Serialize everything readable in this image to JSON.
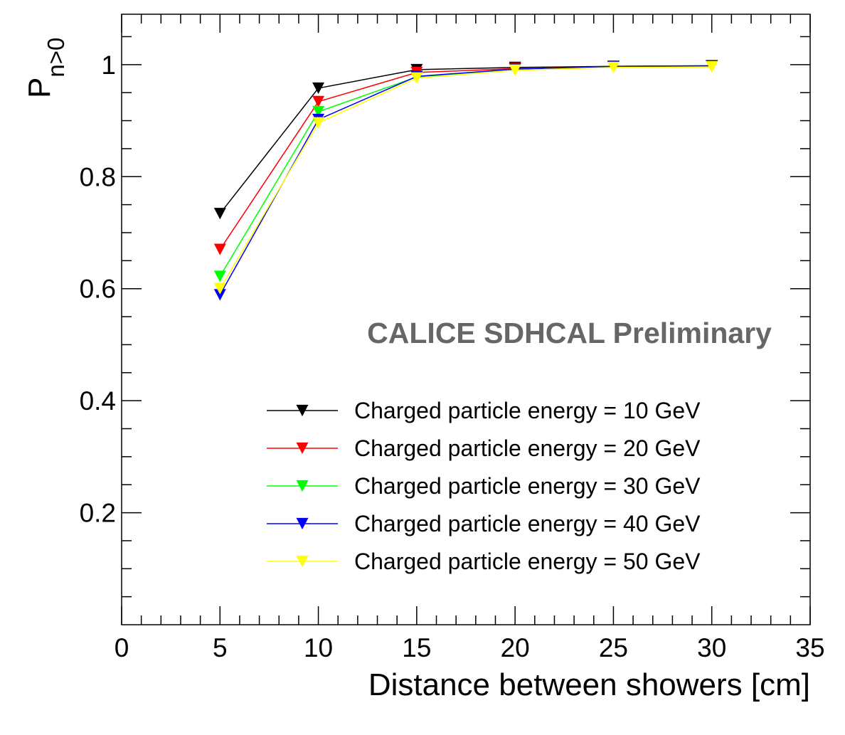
{
  "chart_data": {
    "type": "line",
    "xlabel": "Distance between showers [cm]",
    "ylabel_main": "P",
    "ylabel_sub": "n>0",
    "annotation": "CALICE SDHCAL Preliminary",
    "xlim": [
      0,
      35
    ],
    "ylim": [
      0,
      1.09
    ],
    "x_ticks": [
      0,
      5,
      10,
      15,
      20,
      25,
      30,
      35
    ],
    "x_tick_labels": [
      "0",
      "5",
      "10",
      "15",
      "20",
      "25",
      "30",
      "35"
    ],
    "y_ticks": [
      0.2,
      0.4,
      0.6,
      0.8,
      1.0
    ],
    "y_tick_labels": [
      "0.2",
      "0.4",
      "0.6",
      "0.8",
      "1"
    ],
    "marker": "triangle-down",
    "legend_position": "bottom-right",
    "x": [
      5,
      10,
      15,
      20,
      25,
      30
    ],
    "series": [
      {
        "name": "Charged particle energy = 10 GeV",
        "color": "#000000",
        "values": [
          0.734,
          0.958,
          0.991,
          0.995,
          0.997,
          0.998
        ]
      },
      {
        "name": "Charged particle energy = 20 GeV",
        "color": "#ff0000",
        "values": [
          0.67,
          0.934,
          0.986,
          0.993,
          0.996,
          0.997
        ]
      },
      {
        "name": "Charged particle energy = 30 GeV",
        "color": "#00ff00",
        "values": [
          0.622,
          0.916,
          0.978,
          0.992,
          0.996,
          0.997
        ]
      },
      {
        "name": "Charged particle energy = 40 GeV",
        "color": "#0000ff",
        "values": [
          0.589,
          0.902,
          0.979,
          0.992,
          0.996,
          0.997
        ]
      },
      {
        "name": "Charged particle energy = 50 GeV",
        "color": "#ffff00",
        "values": [
          0.6,
          0.896,
          0.976,
          0.99,
          0.995,
          0.996
        ]
      }
    ]
  }
}
